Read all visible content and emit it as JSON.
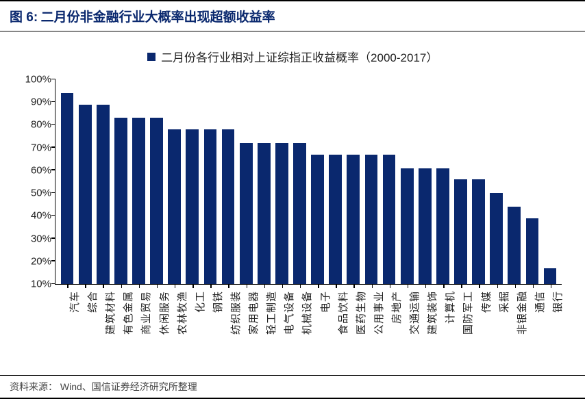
{
  "figure_label": "图 6:",
  "title": "二月份非金融行业大概率出现超额收益率",
  "legend_label": "二月份各行业相对上证综指正收益概率（2000-2017）",
  "source_label": "资料来源：",
  "source_text": "Wind、国信证券经济研究所整理",
  "chart": {
    "type": "bar",
    "bar_color": "#0a286e",
    "background_color": "#ffffff",
    "axis_color": "#000000",
    "text_color": "#222222",
    "title_color": "#0a286e",
    "title_fontsize": 19,
    "legend_fontsize": 17,
    "ytick_fontsize": 15,
    "xlabel_fontsize": 15,
    "bar_width_ratio": 0.72,
    "ymin": 10,
    "ymax": 100,
    "ytick_step": 10,
    "yticks": [
      "10%",
      "20%",
      "30%",
      "40%",
      "50%",
      "60%",
      "70%",
      "80%",
      "90%",
      "100%"
    ],
    "categories": [
      "汽车",
      "综合",
      "建筑材料",
      "有色金属",
      "商业贸易",
      "休闲服务",
      "农林牧渔",
      "化工",
      "钢铁",
      "纺织服装",
      "家用电器",
      "轻工制造",
      "电气设备",
      "机械设备",
      "电子",
      "食品饮料",
      "医药生物",
      "公用事业",
      "房地产",
      "交通运输",
      "建筑装饰",
      "计算机",
      "国防军工",
      "传媒",
      "采掘",
      "非银金融",
      "通信",
      "银行"
    ],
    "values": [
      94,
      89,
      89,
      83,
      83,
      83,
      78,
      78,
      78,
      78,
      72,
      72,
      72,
      72,
      67,
      67,
      67,
      67,
      67,
      61,
      61,
      61,
      56,
      56,
      50,
      44,
      39,
      17
    ]
  }
}
